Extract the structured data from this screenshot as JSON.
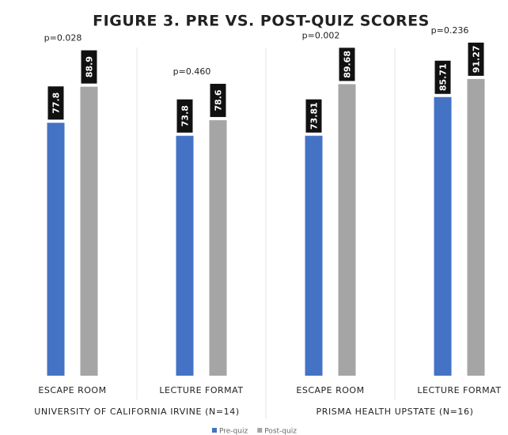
{
  "chart_data": {
    "type": "bar",
    "title": "FIGURE 3. PRE VS. POST-QUIZ SCORES",
    "categories": [
      "ESCAPE ROOM",
      "LECTURE FORMAT",
      "ESCAPE ROOM",
      "LECTURE FORMAT"
    ],
    "groups": [
      {
        "label": "UNIVERSITY OF CALIFORNIA IRVINE (N=14)",
        "size": 2
      },
      {
        "label": "PRISMA HEALTH UPSTATE (N=16)",
        "size": 2
      }
    ],
    "annotations": [
      "p=0.028",
      "p=0.460",
      "p=0.002",
      "p=0.236"
    ],
    "series": [
      {
        "name": "Pre-quiz",
        "color": "#4472c4",
        "values": [
          77.8,
          73.8,
          73.81,
          85.71
        ]
      },
      {
        "name": "Post-quiz",
        "color": "#a5a5a5",
        "values": [
          88.9,
          78.6,
          89.68,
          91.27
        ]
      }
    ],
    "ylim": [
      0,
      100
    ]
  }
}
